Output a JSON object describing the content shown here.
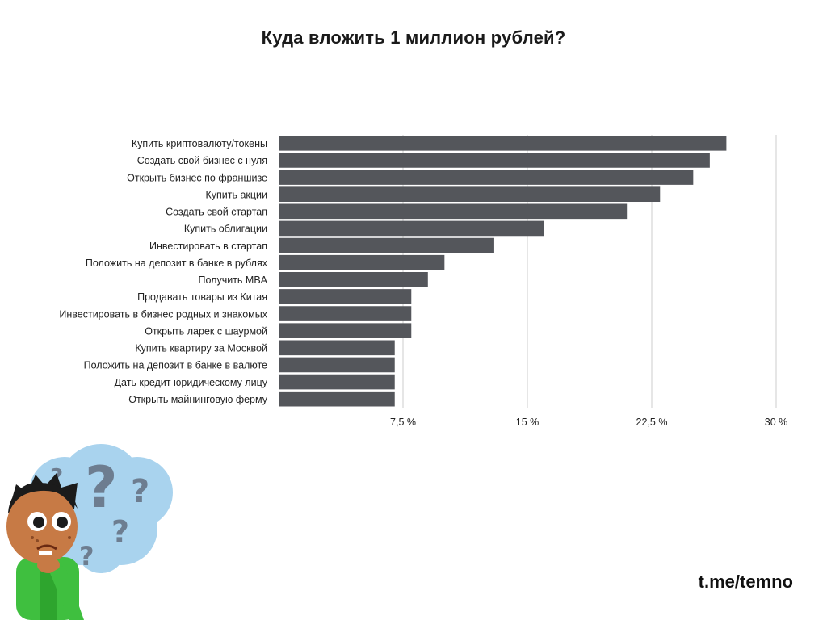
{
  "chart_data": {
    "type": "bar",
    "orientation": "horizontal",
    "title": "Куда вложить 1 миллион рублей?",
    "categories": [
      "Купить криптовалюту/токены",
      "Создать свой бизнес с нуля",
      "Открыть бизнес по франшизе",
      "Купить акции",
      "Создать свой стартап",
      "Купить облигации",
      "Инвестировать в стартап",
      "Положить на депозит в банке в рублях",
      "Получить MBA",
      "Продавать товары из Китая",
      "Инвестировать в бизнес родных и знакомых",
      "Открыть ларек с шаурмой",
      "Купить квартиру за Москвой",
      "Положить на депозит в банке в валюте",
      "Дать кредит юридическому лицу",
      "Открыть майнинговую ферму"
    ],
    "values": [
      27,
      26,
      25,
      23,
      21,
      16,
      13,
      10,
      9,
      8,
      8,
      8,
      7,
      7,
      7,
      7
    ],
    "xlim": [
      0,
      30
    ],
    "xticks": [
      7.5,
      15,
      22.5,
      30
    ],
    "xtick_labels": [
      "7,5 %",
      "15 %",
      "22,5 %",
      "30 %"
    ],
    "grid": true,
    "bar_color": "#54565b",
    "grid_color": "#cccccc"
  },
  "watermark": "t.me/temno"
}
